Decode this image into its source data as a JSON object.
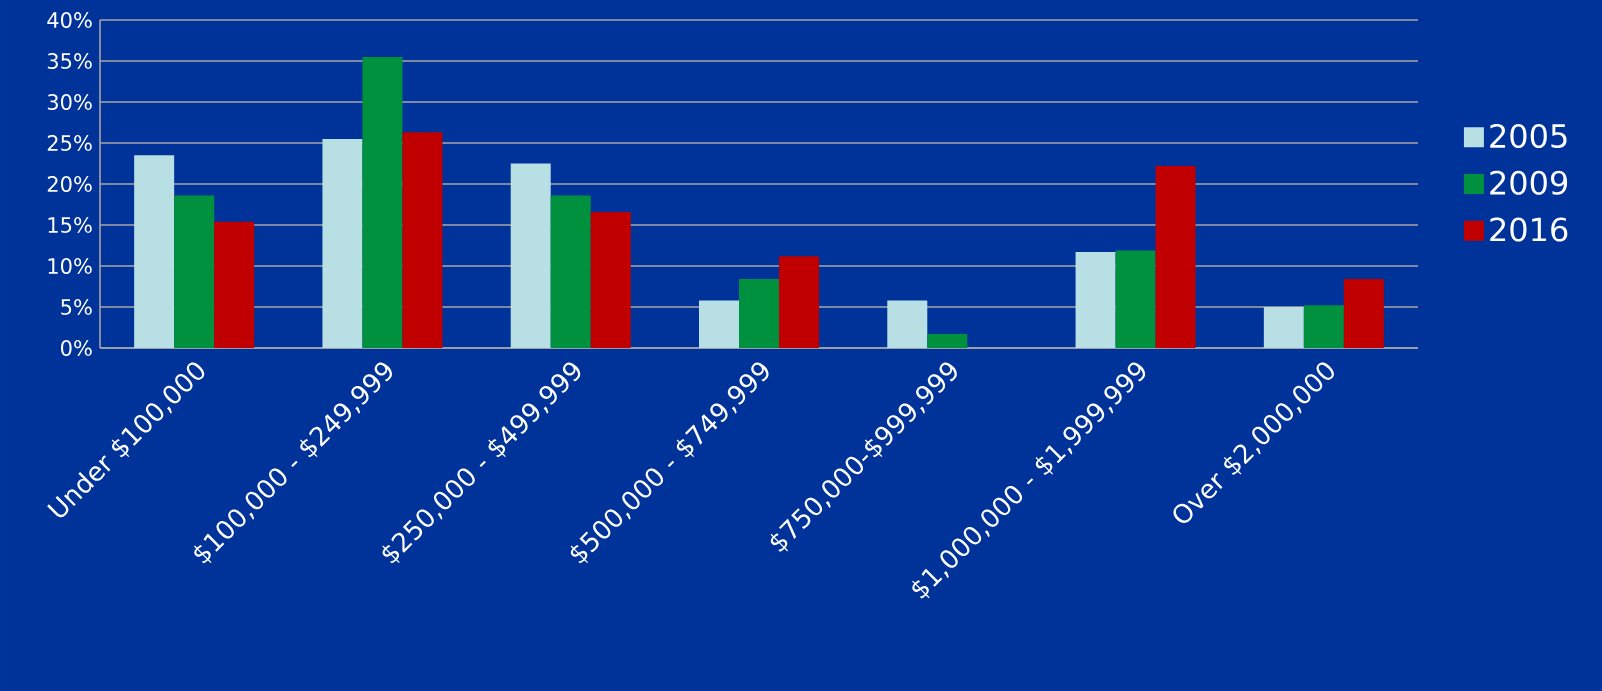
{
  "chart_data": {
    "type": "bar",
    "categories": [
      "Under $100,000",
      "$100,000 - $249,999",
      "$250,000 - $499,999",
      "$500,000 - $749,999",
      "$750,000-$999,999",
      "$1,000,000 - $1,999,999",
      "Over $2,000,000"
    ],
    "series": [
      {
        "name": "2005",
        "color": "#b8dfe3",
        "values": [
          23.5,
          25.5,
          22.5,
          5.8,
          5.8,
          11.7,
          5.0
        ]
      },
      {
        "name": "2009",
        "color": "#00913f",
        "values": [
          18.6,
          35.5,
          18.6,
          8.4,
          1.7,
          11.9,
          5.2
        ]
      },
      {
        "name": "2016",
        "color": "#c00000",
        "values": [
          15.4,
          26.3,
          16.6,
          11.2,
          null,
          22.2,
          8.4
        ]
      }
    ],
    "ylim": [
      0,
      40
    ],
    "yticks": [
      {
        "value": 0,
        "label": "0%"
      },
      {
        "value": 5,
        "label": "5%"
      },
      {
        "value": 10,
        "label": "10%"
      },
      {
        "value": 15,
        "label": "15%"
      },
      {
        "value": 20,
        "label": "20%"
      },
      {
        "value": 25,
        "label": "25%"
      },
      {
        "value": 30,
        "label": "30%"
      },
      {
        "value": 35,
        "label": "35%"
      },
      {
        "value": 40,
        "label": "40%"
      }
    ],
    "grid": "y",
    "legend": "right"
  }
}
